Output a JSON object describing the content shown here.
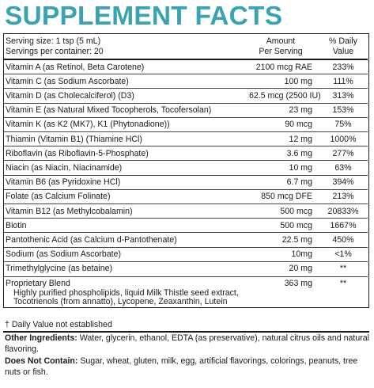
{
  "title": "SUPPLEMENT FACTS",
  "serving_size": "Serving size: 1 tsp (5 mL)",
  "servings_per_container": "Servings per container: 20",
  "col_amount_1": "Amount",
  "col_amount_2": "Per Serving",
  "col_dv_1": "% Daily",
  "col_dv_2": "Value",
  "nutrients": [
    {
      "name": "Vitamin A (as Retinol, Beta Carotene)",
      "amount": "2100 mcg RAE",
      "dv": "233%"
    },
    {
      "name": "Vitamin C (as Sodium Ascorbate)",
      "amount": "100 mg",
      "dv": "111%"
    },
    {
      "name": "Vitamin D (as Cholecalciferol) (D3)",
      "amount": "62.5 mcg (2500 IU)",
      "dv": "313%"
    },
    {
      "name": "Vitamin E (as Natural Mixed Tocopherols, Tocofersolan)",
      "amount": "23 mg",
      "dv": "153%"
    },
    {
      "name": "Vitamin K (as K2 (MK7), K1 (Phytonadione))",
      "amount": "90 mcg",
      "dv": "75%"
    },
    {
      "name": "Thiamin (Vitamin B1) (Thiamine HCl)",
      "amount": "12 mg",
      "dv": "1000%"
    },
    {
      "name": "Riboflavin (as Riboflavin-5-Phosphate)",
      "amount": "3.6 mg",
      "dv": "277%"
    },
    {
      "name": "Niacin (as Niacin, Niacinamide)",
      "amount": "10 mg",
      "dv": "63%"
    },
    {
      "name": "Vitamin B6 (as Pyridoxine HCl)",
      "amount": "6.7 mg",
      "dv": "394%"
    },
    {
      "name": "Folate (as Calcium Folinate)",
      "amount": "850 mcg DFE",
      "dv": "213%"
    },
    {
      "name": "Vitamin B12 (as Methylcobalamin)",
      "amount": "500 mcg",
      "dv": "20833%"
    },
    {
      "name": "Biotin",
      "amount": "500 mcg",
      "dv": "1667%"
    },
    {
      "name": "Pantothenic Acid (as Calcium d-Pantothenate)",
      "amount": "22.5 mg",
      "dv": "450%"
    },
    {
      "name": "Sodium (as Sodium Ascorbate)",
      "amount": "10mg",
      "dv": "<1%"
    },
    {
      "name": "Trimethylglycine (as betaine)",
      "amount": "20 mg",
      "dv": "**"
    }
  ],
  "blend": {
    "name": "Proprietary Blend",
    "amount": "363 mg",
    "dv": "**",
    "line1": "Highly purified phospholipids, liquid Milk Thistle seed extract,",
    "line2": "Tocotrienols (from annatto), Lycopene, Zeaxanthin, Lutein"
  },
  "dv_note": "† Daily Value not established",
  "other_label": "Other Ingredients:",
  "other_text": " Water, glycerin, ethanol, EDTA (as preservative), natural citrus oils and natural flavoring.",
  "dnc_label": "Does Not Contain:",
  "dnc_text": " Sugar, wheat, gluten, milk, egg, artificial flavorings, colorings, peanuts, tree nuts or fish."
}
